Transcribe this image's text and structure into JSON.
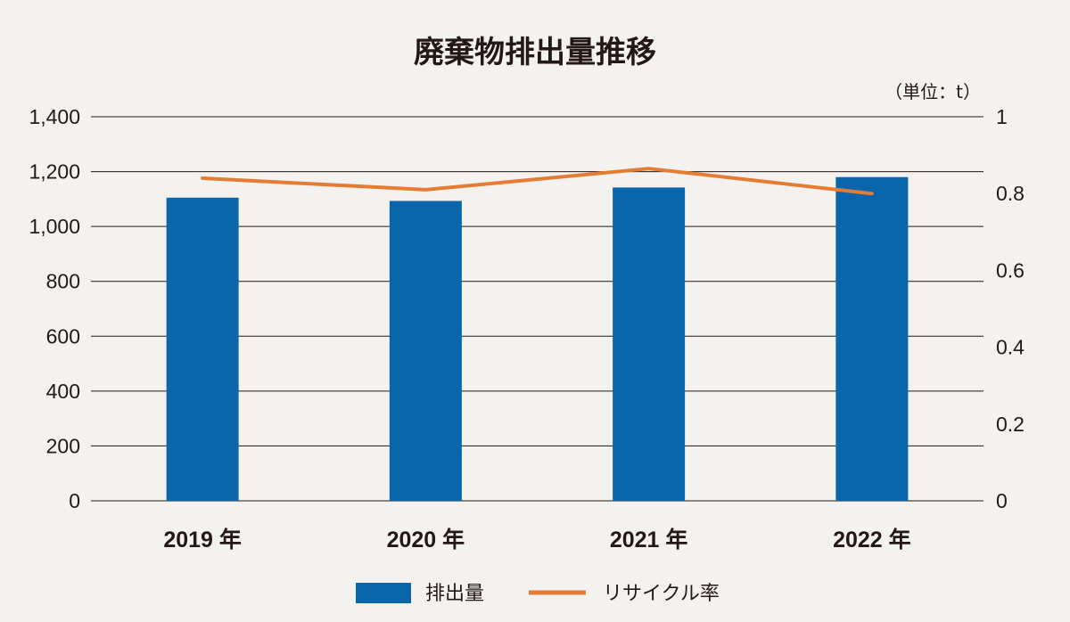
{
  "chart_data": {
    "type": "bar",
    "title": "廃棄物排出量推移",
    "unit_label": "（単位：t）",
    "categories": [
      "2019 年",
      "2020 年",
      "2021 年",
      "2022 年"
    ],
    "series": [
      {
        "name": "排出量",
        "type": "bar",
        "axis": "left",
        "color": "#0a66ab",
        "values": [
          1105,
          1093,
          1142,
          1180
        ]
      },
      {
        "name": "リサイクル率",
        "type": "line",
        "axis": "right",
        "color": "#e47c34",
        "values": [
          0.84,
          0.81,
          0.865,
          0.8
        ]
      }
    ],
    "ylim_left": [
      0,
      1400
    ],
    "yticks_left": [
      "0",
      "200",
      "400",
      "600",
      "800",
      "1,000",
      "1,200",
      "1,400"
    ],
    "ylim_right": [
      0,
      1
    ],
    "yticks_right": [
      "0",
      "0.2",
      "0.4",
      "0.6",
      "0.8",
      "1"
    ],
    "grid": true,
    "legend_position": "bottom-center"
  }
}
